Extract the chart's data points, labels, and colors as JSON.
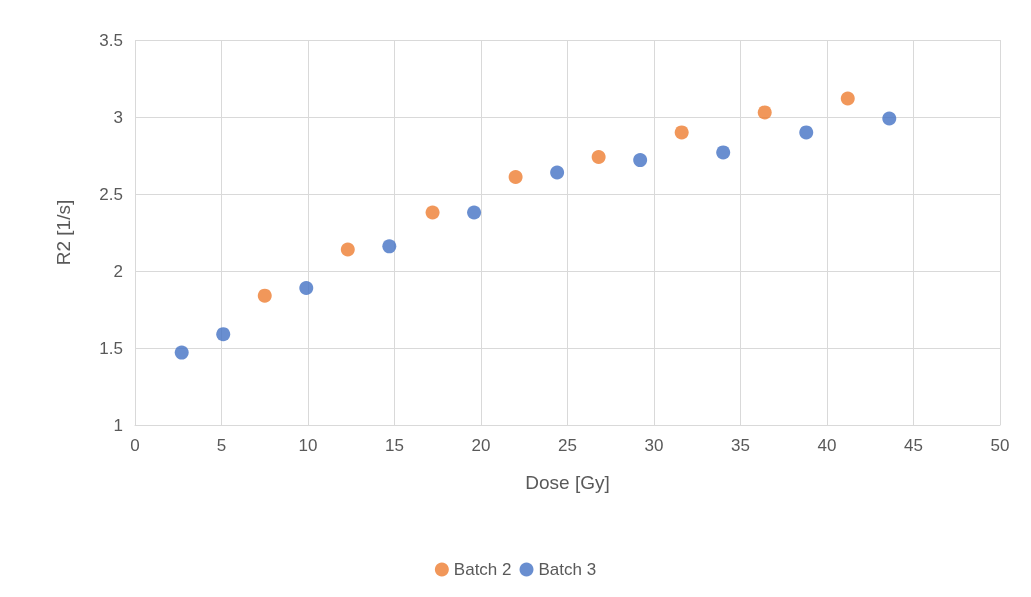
{
  "chart_data": {
    "type": "scatter",
    "xlabel": "Dose [Gy]",
    "ylabel": "R2 [1/s]",
    "xlim": [
      0,
      50
    ],
    "xticks": [
      0,
      5,
      10,
      15,
      20,
      25,
      30,
      35,
      40,
      45,
      50
    ],
    "ylim": [
      1,
      3.5
    ],
    "yticks": [
      1,
      1.5,
      2,
      2.5,
      3,
      3.5
    ],
    "grid": true,
    "legend": "bottom",
    "marker": "circle",
    "series": [
      {
        "name": "Batch 2",
        "color": "#ed7d31",
        "x": [
          7.5,
          12.3,
          17.2,
          22.0,
          26.8,
          31.6,
          36.4,
          41.2
        ],
        "values": [
          1.84,
          2.14,
          2.38,
          2.61,
          2.74,
          2.9,
          3.03,
          3.12
        ]
      },
      {
        "name": "Batch 3",
        "color": "#4472c4",
        "x": [
          2.7,
          5.1,
          9.9,
          14.7,
          19.6,
          24.4,
          29.2,
          34.0,
          38.8,
          43.6
        ],
        "values": [
          1.47,
          1.59,
          1.89,
          2.16,
          2.38,
          2.64,
          2.72,
          2.77,
          2.9,
          2.99
        ]
      }
    ]
  }
}
